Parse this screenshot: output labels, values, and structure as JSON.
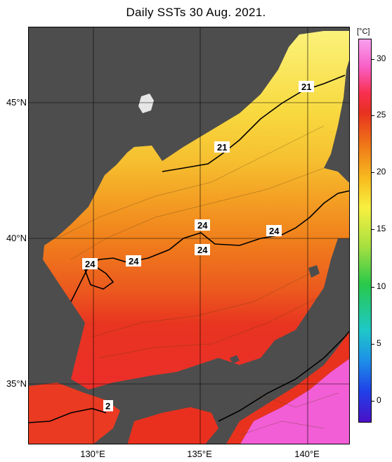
{
  "title": "Daily SSTs 30 Aug. 2021.",
  "colorbar": {
    "unit": "[°C]",
    "ticks": [
      "30",
      "25",
      "20",
      "15",
      "10",
      "5",
      "0"
    ]
  },
  "axes": {
    "lat_labels": [
      "45°N",
      "40°N",
      "35°N"
    ],
    "lon_labels": [
      "130°E",
      "135°E",
      "140°E"
    ]
  },
  "contour_labels": [
    "21",
    "21",
    "24",
    "24",
    "24",
    "24",
    "24",
    "2"
  ],
  "colors": {
    "land": "#4d4d4d",
    "warm_red": "#e8321e",
    "hot_pink": "#f25ed6",
    "yellow": "#f8d838",
    "orange": "#f0a020"
  }
}
